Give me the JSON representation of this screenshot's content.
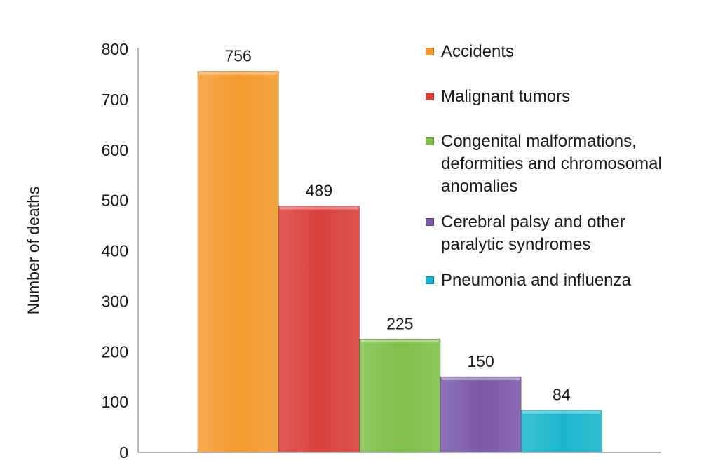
{
  "chart_data": {
    "type": "bar",
    "title": "",
    "xlabel": "",
    "ylabel": "Number of deaths",
    "ylim": [
      0,
      800
    ],
    "yticks": [
      0,
      100,
      200,
      300,
      400,
      500,
      600,
      700,
      800
    ],
    "grid": false,
    "legend_position": "right",
    "categories": [
      "Accidents",
      "Malignant tumors",
      "Congenital malformations, deformities and chromosomal anomalies",
      "Cerebral palsy and other paralytic syndromes",
      "Pneumonia and influenza"
    ],
    "legend_lines": [
      [
        "Accidents"
      ],
      [
        "Malignant tumors"
      ],
      [
        "Congenital malformations,",
        "deformities and chromosomal",
        "anomalies"
      ],
      [
        "Cerebral palsy and other",
        "paralytic syndromes"
      ],
      [
        "Pneumonia and influenza"
      ]
    ],
    "values": [
      756,
      489,
      225,
      150,
      84
    ],
    "data_labels": [
      "756",
      "489",
      "225",
      "150",
      "84"
    ],
    "colors": [
      "#f59a30",
      "#d9413c",
      "#7fbf4a",
      "#7a59a8",
      "#1bb6cc"
    ]
  }
}
